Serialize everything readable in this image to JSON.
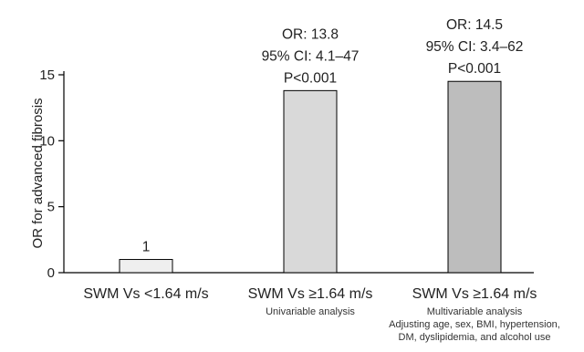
{
  "chart_data": {
    "type": "bar",
    "ylabel": "OR for advanced fibrosis",
    "xlabel": "",
    "ylim": [
      0,
      15
    ],
    "yticks": [
      0,
      5,
      10,
      15
    ],
    "grid": false,
    "categories": [
      "SWM Vs <1.64 m/s",
      "SWM Vs ≥1.64 m/s",
      "SWM Vs ≥1.64 m/s"
    ],
    "subcaptions": [
      [],
      [
        "Univariable analysis"
      ],
      [
        "Multivariable analysis",
        "Adjusting age, sex, BMI, hypertension,",
        "DM, dyslipidemia, and alcohol use"
      ]
    ],
    "values": [
      1,
      13.8,
      14.5
    ],
    "bar_colors": [
      "#efefef",
      "#d9d9d9",
      "#bdbdbd"
    ],
    "annotations": [
      [
        "1"
      ],
      [
        "OR: 13.8",
        "95% CI: 4.1–47",
        "P<0.001"
      ],
      [
        "OR: 14.5",
        "95% CI: 3.4–62",
        "P<0.001"
      ]
    ]
  }
}
